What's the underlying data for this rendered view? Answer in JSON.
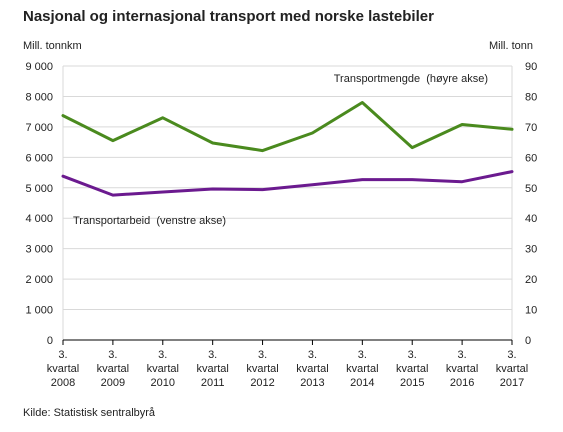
{
  "title": "Nasjonal og internasjonal transport med norske lastebiler",
  "source": "Kilde: Statistisk sentralbyrå",
  "chart_data": {
    "type": "line",
    "title": "Nasjonal og internasjonal transport med norske lastebiler",
    "categories": [
      [
        "3.",
        "kvartal",
        "2008"
      ],
      [
        "3.",
        "kvartal",
        "2009"
      ],
      [
        "3.",
        "kvartal",
        "2010"
      ],
      [
        "3.",
        "kvartal",
        "2011"
      ],
      [
        "3.",
        "kvartal",
        "2012"
      ],
      [
        "3.",
        "kvartal",
        "2013"
      ],
      [
        "3.",
        "kvartal",
        "2014"
      ],
      [
        "3.",
        "kvartal",
        "2015"
      ],
      [
        "3.",
        "kvartal",
        "2016"
      ],
      [
        "3.",
        "kvartal",
        "2017"
      ]
    ],
    "left_axis": {
      "label": "Mill. tonnkm",
      "ylim": [
        0,
        9000
      ],
      "ticks": [
        "0",
        "1 000",
        "2 000",
        "3 000",
        "4 000",
        "5 000",
        "6 000",
        "7 000",
        "8 000",
        "9 000"
      ]
    },
    "right_axis": {
      "label": "Mill. tonn",
      "ylim": [
        0,
        90
      ],
      "ticks": [
        "0",
        "10",
        "20",
        "30",
        "40",
        "50",
        "60",
        "70",
        "80",
        "90"
      ]
    },
    "grid": true,
    "series": [
      {
        "name": "Transportmengde  (høyre akse)",
        "axis": "right",
        "color": "#4a8a1e",
        "values": [
          73.7,
          65.5,
          73.0,
          64.7,
          62.2,
          68.0,
          78.0,
          63.2,
          70.8,
          69.2
        ]
      },
      {
        "name": "Transportarbeid  (venstre akse)",
        "axis": "left",
        "color": "#6b1a8f",
        "values": [
          5380,
          4760,
          4860,
          4960,
          4940,
          5100,
          5270,
          5270,
          5200,
          5530
        ]
      }
    ]
  }
}
